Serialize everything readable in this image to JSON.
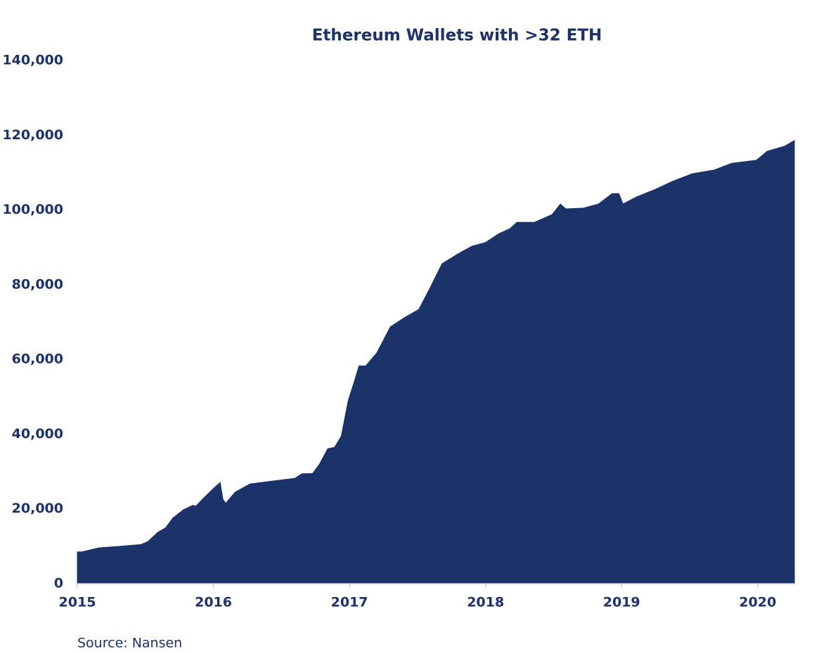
{
  "chart_data": {
    "type": "area",
    "title": "Ethereum Wallets with >32 ETH",
    "source": "Source: Nansen",
    "color": "#1c3369",
    "x": [
      2015.0,
      2015.03,
      2015.16,
      2015.31,
      2015.47,
      2015.52,
      2015.59,
      2015.65,
      2015.7,
      2015.78,
      2015.85,
      2015.87,
      2015.93,
      2016.01,
      2016.05,
      2016.07,
      2016.09,
      2016.16,
      2016.27,
      2016.4,
      2016.6,
      2016.65,
      2016.73,
      2016.78,
      2016.84,
      2016.89,
      2016.94,
      2016.99,
      2017.04,
      2017.07,
      2017.12,
      2017.2,
      2017.3,
      2017.4,
      2017.51,
      2017.59,
      2017.68,
      2017.79,
      2017.9,
      2018.0,
      2018.1,
      2018.18,
      2018.23,
      2018.36,
      2018.49,
      2018.55,
      2018.59,
      2018.72,
      2018.83,
      2018.93,
      2018.98,
      2019.01,
      2019.11,
      2019.24,
      2019.37,
      2019.52,
      2019.68,
      2019.81,
      2019.99,
      2020.07,
      2020.2,
      2020.27
    ],
    "values": [
      8500,
      8500,
      9600,
      10000,
      10500,
      11300,
      13700,
      15000,
      17500,
      19800,
      21000,
      20700,
      23000,
      25800,
      27100,
      22600,
      21500,
      24500,
      26700,
      27300,
      28200,
      29400,
      29500,
      32000,
      36100,
      36500,
      39500,
      48900,
      54600,
      58300,
      58300,
      61700,
      68700,
      71100,
      73400,
      79000,
      85600,
      88100,
      90300,
      91300,
      93700,
      95000,
      96700,
      96700,
      98800,
      101600,
      100300,
      100500,
      101600,
      104400,
      104400,
      101600,
      103500,
      105400,
      107600,
      109700,
      110700,
      112500,
      113300,
      115700,
      117100,
      118600
    ],
    "xlim": [
      2015,
      2020.27
    ],
    "xticks": [
      2015,
      2016,
      2017,
      2018,
      2019,
      2020
    ],
    "ylim": [
      0,
      140000
    ],
    "yticks": [
      0,
      {
        "value": 20000,
        "label": "20,000"
      },
      {
        "value": 40000,
        "label": "40,000"
      },
      {
        "value": 60000,
        "label": "60,000"
      },
      {
        "value": 80000,
        "label": "80,000"
      },
      {
        "value": 100000,
        "label": "100,000"
      },
      {
        "value": 120000,
        "label": "120,000"
      },
      {
        "value": 140000,
        "label": "140,000"
      }
    ],
    "grid": false
  }
}
